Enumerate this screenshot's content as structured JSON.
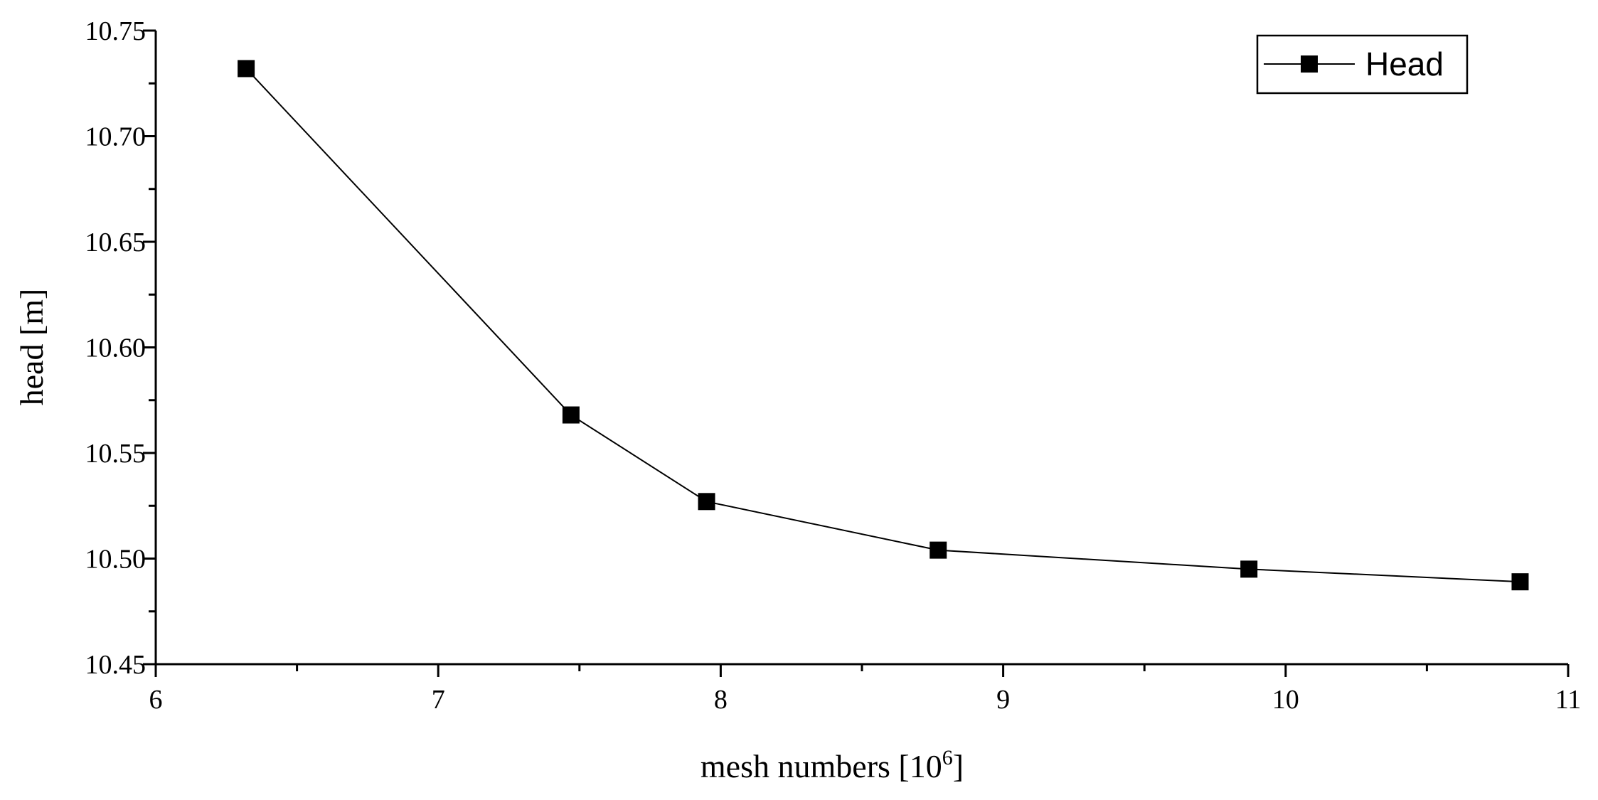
{
  "chart_data": {
    "type": "line",
    "title": "",
    "xlabel": "mesh numbers [10",
    "xlabel_sup": "6",
    "xlabel_close": "]",
    "ylabel": "head [m]",
    "xlim": [
      6,
      11
    ],
    "ylim": [
      10.45,
      10.75
    ],
    "x_ticks": [
      6,
      7,
      8,
      9,
      10,
      11
    ],
    "x_tick_labels": [
      "6",
      "7",
      "8",
      "9",
      "10",
      "11"
    ],
    "y_ticks": [
      10.45,
      10.5,
      10.55,
      10.6,
      10.65,
      10.7,
      10.75
    ],
    "y_tick_labels": [
      "10.45",
      "10.50",
      "10.55",
      "10.60",
      "10.65",
      "10.70",
      "10.75"
    ],
    "grid": false,
    "legend_position": "top-right",
    "series": [
      {
        "name": "Head",
        "marker": "square",
        "color": "#000000",
        "x": [
          6.32,
          7.47,
          7.95,
          8.77,
          9.87,
          10.83
        ],
        "y": [
          10.732,
          10.568,
          10.527,
          10.504,
          10.495,
          10.489
        ]
      }
    ]
  }
}
